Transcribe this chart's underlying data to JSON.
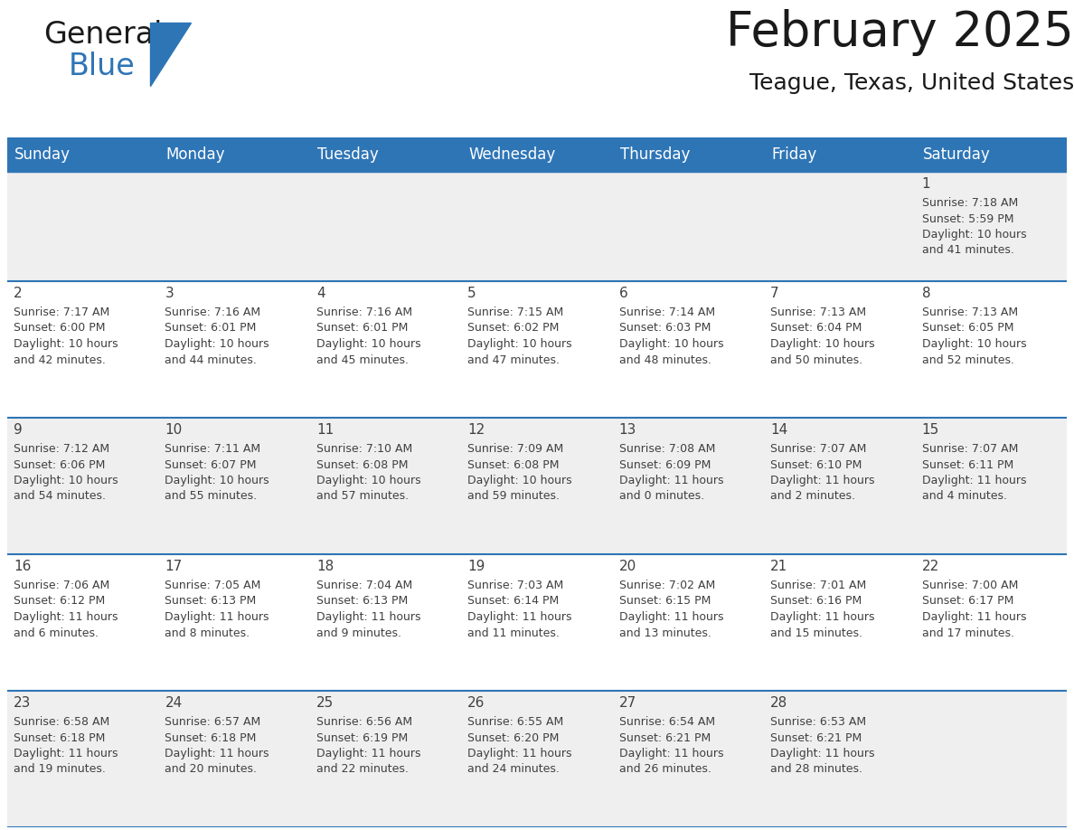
{
  "title": "February 2025",
  "subtitle": "Teague, Texas, United States",
  "days_of_week": [
    "Sunday",
    "Monday",
    "Tuesday",
    "Wednesday",
    "Thursday",
    "Friday",
    "Saturday"
  ],
  "header_bg": "#2E75B6",
  "header_text": "#FFFFFF",
  "cell_bg_white": "#FFFFFF",
  "cell_bg_gray": "#EFEFEF",
  "separator_color": "#2E75B6",
  "text_color": "#404040",
  "day_num_color": "#404040",
  "calendar_data": [
    [
      null,
      null,
      null,
      null,
      null,
      null,
      {
        "day": 1,
        "sunrise": "7:18 AM",
        "sunset": "5:59 PM",
        "daylight": "10 hours",
        "daylight2": "and 41 minutes."
      }
    ],
    [
      {
        "day": 2,
        "sunrise": "7:17 AM",
        "sunset": "6:00 PM",
        "daylight": "10 hours",
        "daylight2": "and 42 minutes."
      },
      {
        "day": 3,
        "sunrise": "7:16 AM",
        "sunset": "6:01 PM",
        "daylight": "10 hours",
        "daylight2": "and 44 minutes."
      },
      {
        "day": 4,
        "sunrise": "7:16 AM",
        "sunset": "6:01 PM",
        "daylight": "10 hours",
        "daylight2": "and 45 minutes."
      },
      {
        "day": 5,
        "sunrise": "7:15 AM",
        "sunset": "6:02 PM",
        "daylight": "10 hours",
        "daylight2": "and 47 minutes."
      },
      {
        "day": 6,
        "sunrise": "7:14 AM",
        "sunset": "6:03 PM",
        "daylight": "10 hours",
        "daylight2": "and 48 minutes."
      },
      {
        "day": 7,
        "sunrise": "7:13 AM",
        "sunset": "6:04 PM",
        "daylight": "10 hours",
        "daylight2": "and 50 minutes."
      },
      {
        "day": 8,
        "sunrise": "7:13 AM",
        "sunset": "6:05 PM",
        "daylight": "10 hours",
        "daylight2": "and 52 minutes."
      }
    ],
    [
      {
        "day": 9,
        "sunrise": "7:12 AM",
        "sunset": "6:06 PM",
        "daylight": "10 hours",
        "daylight2": "and 54 minutes."
      },
      {
        "day": 10,
        "sunrise": "7:11 AM",
        "sunset": "6:07 PM",
        "daylight": "10 hours",
        "daylight2": "and 55 minutes."
      },
      {
        "day": 11,
        "sunrise": "7:10 AM",
        "sunset": "6:08 PM",
        "daylight": "10 hours",
        "daylight2": "and 57 minutes."
      },
      {
        "day": 12,
        "sunrise": "7:09 AM",
        "sunset": "6:08 PM",
        "daylight": "10 hours",
        "daylight2": "and 59 minutes."
      },
      {
        "day": 13,
        "sunrise": "7:08 AM",
        "sunset": "6:09 PM",
        "daylight": "11 hours",
        "daylight2": "and 0 minutes."
      },
      {
        "day": 14,
        "sunrise": "7:07 AM",
        "sunset": "6:10 PM",
        "daylight": "11 hours",
        "daylight2": "and 2 minutes."
      },
      {
        "day": 15,
        "sunrise": "7:07 AM",
        "sunset": "6:11 PM",
        "daylight": "11 hours",
        "daylight2": "and 4 minutes."
      }
    ],
    [
      {
        "day": 16,
        "sunrise": "7:06 AM",
        "sunset": "6:12 PM",
        "daylight": "11 hours",
        "daylight2": "and 6 minutes."
      },
      {
        "day": 17,
        "sunrise": "7:05 AM",
        "sunset": "6:13 PM",
        "daylight": "11 hours",
        "daylight2": "and 8 minutes."
      },
      {
        "day": 18,
        "sunrise": "7:04 AM",
        "sunset": "6:13 PM",
        "daylight": "11 hours",
        "daylight2": "and 9 minutes."
      },
      {
        "day": 19,
        "sunrise": "7:03 AM",
        "sunset": "6:14 PM",
        "daylight": "11 hours",
        "daylight2": "and 11 minutes."
      },
      {
        "day": 20,
        "sunrise": "7:02 AM",
        "sunset": "6:15 PM",
        "daylight": "11 hours",
        "daylight2": "and 13 minutes."
      },
      {
        "day": 21,
        "sunrise": "7:01 AM",
        "sunset": "6:16 PM",
        "daylight": "11 hours",
        "daylight2": "and 15 minutes."
      },
      {
        "day": 22,
        "sunrise": "7:00 AM",
        "sunset": "6:17 PM",
        "daylight": "11 hours",
        "daylight2": "and 17 minutes."
      }
    ],
    [
      {
        "day": 23,
        "sunrise": "6:58 AM",
        "sunset": "6:18 PM",
        "daylight": "11 hours",
        "daylight2": "and 19 minutes."
      },
      {
        "day": 24,
        "sunrise": "6:57 AM",
        "sunset": "6:18 PM",
        "daylight": "11 hours",
        "daylight2": "and 20 minutes."
      },
      {
        "day": 25,
        "sunrise": "6:56 AM",
        "sunset": "6:19 PM",
        "daylight": "11 hours",
        "daylight2": "and 22 minutes."
      },
      {
        "day": 26,
        "sunrise": "6:55 AM",
        "sunset": "6:20 PM",
        "daylight": "11 hours",
        "daylight2": "and 24 minutes."
      },
      {
        "day": 27,
        "sunrise": "6:54 AM",
        "sunset": "6:21 PM",
        "daylight": "11 hours",
        "daylight2": "and 26 minutes."
      },
      {
        "day": 28,
        "sunrise": "6:53 AM",
        "sunset": "6:21 PM",
        "daylight": "11 hours",
        "daylight2": "and 28 minutes."
      },
      null
    ]
  ],
  "logo_text1": "General",
  "logo_text2": "Blue",
  "logo_color1": "#1a1a1a",
  "logo_color2": "#2E75B6",
  "logo_triangle_color": "#2E75B6",
  "title_fontsize": 38,
  "subtitle_fontsize": 18,
  "dow_fontsize": 12,
  "day_num_fontsize": 11,
  "cell_fontsize": 9
}
